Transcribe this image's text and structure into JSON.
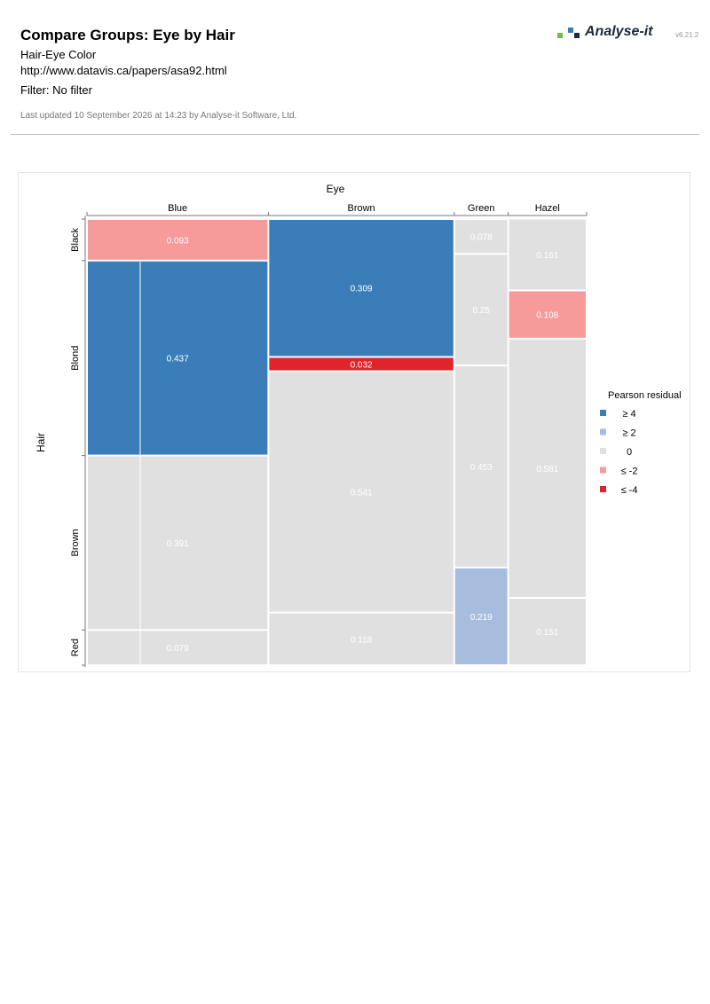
{
  "report": {
    "title": "Compare Groups: Eye by Hair",
    "dataset": "Hair-Eye Color",
    "source_url": "http://www.datavis.ca/papers/asa92.html",
    "filter": "Filter: No filter",
    "updated": "Last updated 10 September 2026 at 14:23 by Analyse-it Software, Ltd.",
    "brand": "Analyse-it",
    "version": "v6.21.2",
    "logo_colors": [
      "#6bbf4e",
      "#3a7ab8",
      "#1d2a3a"
    ]
  },
  "chart_data": {
    "type": "mosaic",
    "x_title": "Eye",
    "y_title": "Hair",
    "x_categories": [
      "Blue",
      "Brown",
      "Green",
      "Hazel"
    ],
    "y_categories": [
      "Black",
      "Blond",
      "Brown",
      "Red"
    ],
    "x_tick_categories": [
      "Blue",
      "Brown",
      "Green",
      "Hazel"
    ],
    "column_widths": [
      0.363,
      0.372,
      0.108,
      0.157
    ],
    "cells": [
      {
        "eye": "Blue",
        "hair": "Black",
        "value": "0.093",
        "share": 0.093,
        "residual": "≤ -2"
      },
      {
        "eye": "Blue",
        "hair": "Blond",
        "value": "0.437",
        "share": 0.437,
        "residual": "≥ 4"
      },
      {
        "eye": "Blue",
        "hair": "Brown",
        "value": "0.391",
        "share": 0.391,
        "residual": "0"
      },
      {
        "eye": "Blue",
        "hair": "Red",
        "value": "0.079",
        "share": 0.079,
        "residual": "0"
      },
      {
        "eye": "Brown",
        "hair": "Black",
        "value": "0.309",
        "share": 0.309,
        "residual": "≥ 4"
      },
      {
        "eye": "Brown",
        "hair": "Blond",
        "value": "0.032",
        "share": 0.032,
        "residual": "≤ -4"
      },
      {
        "eye": "Brown",
        "hair": "Brown",
        "value": "0.541",
        "share": 0.541,
        "residual": "0"
      },
      {
        "eye": "Brown",
        "hair": "Red",
        "value": "0.118",
        "share": 0.118,
        "residual": "0"
      },
      {
        "eye": "Green",
        "hair": "Black",
        "value": "0.078",
        "share": 0.078,
        "residual": "0"
      },
      {
        "eye": "Green",
        "hair": "Blond",
        "value": "0.25",
        "share": 0.25,
        "residual": "0"
      },
      {
        "eye": "Green",
        "hair": "Brown",
        "value": "0.453",
        "share": 0.453,
        "residual": "0"
      },
      {
        "eye": "Green",
        "hair": "Red",
        "value": "0.219",
        "share": 0.219,
        "residual": "≥ 2"
      },
      {
        "eye": "Hazel",
        "hair": "Black",
        "value": "0.161",
        "share": 0.161,
        "residual": "0"
      },
      {
        "eye": "Hazel",
        "hair": "Blond",
        "value": "0.108",
        "share": 0.108,
        "residual": "≤ -2"
      },
      {
        "eye": "Hazel",
        "hair": "Brown",
        "value": "0.581",
        "share": 0.581,
        "residual": "0"
      },
      {
        "eye": "Hazel",
        "hair": "Red",
        "value": "0.151",
        "share": 0.151,
        "residual": "0"
      }
    ],
    "legend": {
      "title": "Pearson residual",
      "placement": "right",
      "items": [
        {
          "label": "≥ 4",
          "color": "#3a7db8"
        },
        {
          "label": "≥ 2",
          "color": "#a7bddd"
        },
        {
          "label": "0",
          "color": "#e0e0e0"
        },
        {
          "label": "≤ -2",
          "color": "#f69a9a"
        },
        {
          "label": "≤ -4",
          "color": "#e0242b"
        }
      ]
    },
    "label_colors": {
      "dark_fill": "#ffffff",
      "light_fill": "#ffffff"
    }
  }
}
